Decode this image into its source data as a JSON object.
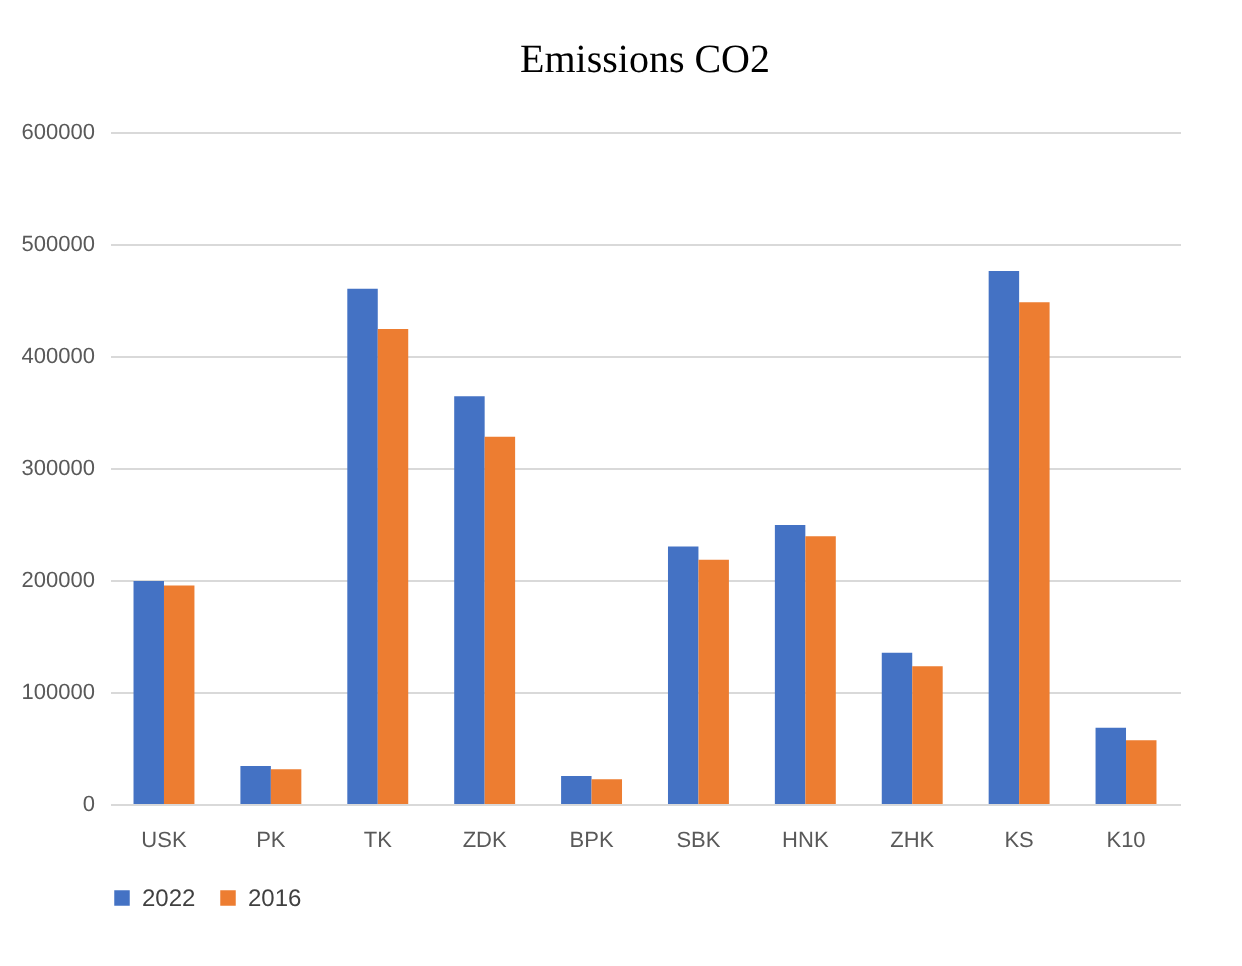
{
  "chart_data": {
    "type": "bar",
    "title": "Emissions CO2",
    "categories": [
      "USK",
      "PK",
      "TK",
      "ZDK",
      "BPK",
      "SBK",
      "HNK",
      "ZHK",
      "KS",
      "K10"
    ],
    "series": [
      {
        "name": "2022",
        "color": "#4472c4",
        "values": [
          199000,
          34000,
          460000,
          364000,
          25000,
          230000,
          249000,
          135000,
          476000,
          68000
        ]
      },
      {
        "name": "2016",
        "color": "#ed7d31",
        "values": [
          195000,
          31000,
          424000,
          328000,
          22000,
          218000,
          239000,
          123000,
          448000,
          57000
        ]
      }
    ],
    "ylim": [
      0,
      600000
    ],
    "yticks": [
      0,
      100000,
      200000,
      300000,
      400000,
      500000,
      600000
    ],
    "grid": "y",
    "legend": "bottom"
  }
}
